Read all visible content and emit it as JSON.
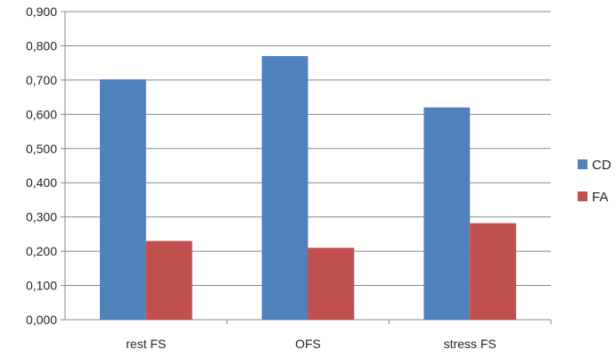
{
  "chart_data": {
    "type": "bar",
    "categories": [
      "rest FS",
      "OFS",
      "stress FS"
    ],
    "series": [
      {
        "name": "CD",
        "values": [
          0.702,
          0.77,
          0.62
        ],
        "color": "#4F81BD"
      },
      {
        "name": "FA",
        "values": [
          0.23,
          0.21,
          0.282
        ],
        "color": "#C0504D"
      }
    ],
    "y_ticks": [
      "0,000",
      "0,100",
      "0,200",
      "0,300",
      "0,400",
      "0,500",
      "0,600",
      "0,700",
      "0,800",
      "0,900"
    ],
    "ylim": [
      0,
      0.9
    ],
    "y_step": 0.1,
    "grid": true,
    "legend_position": "right",
    "title": "",
    "xlabel": "",
    "ylabel": ""
  }
}
